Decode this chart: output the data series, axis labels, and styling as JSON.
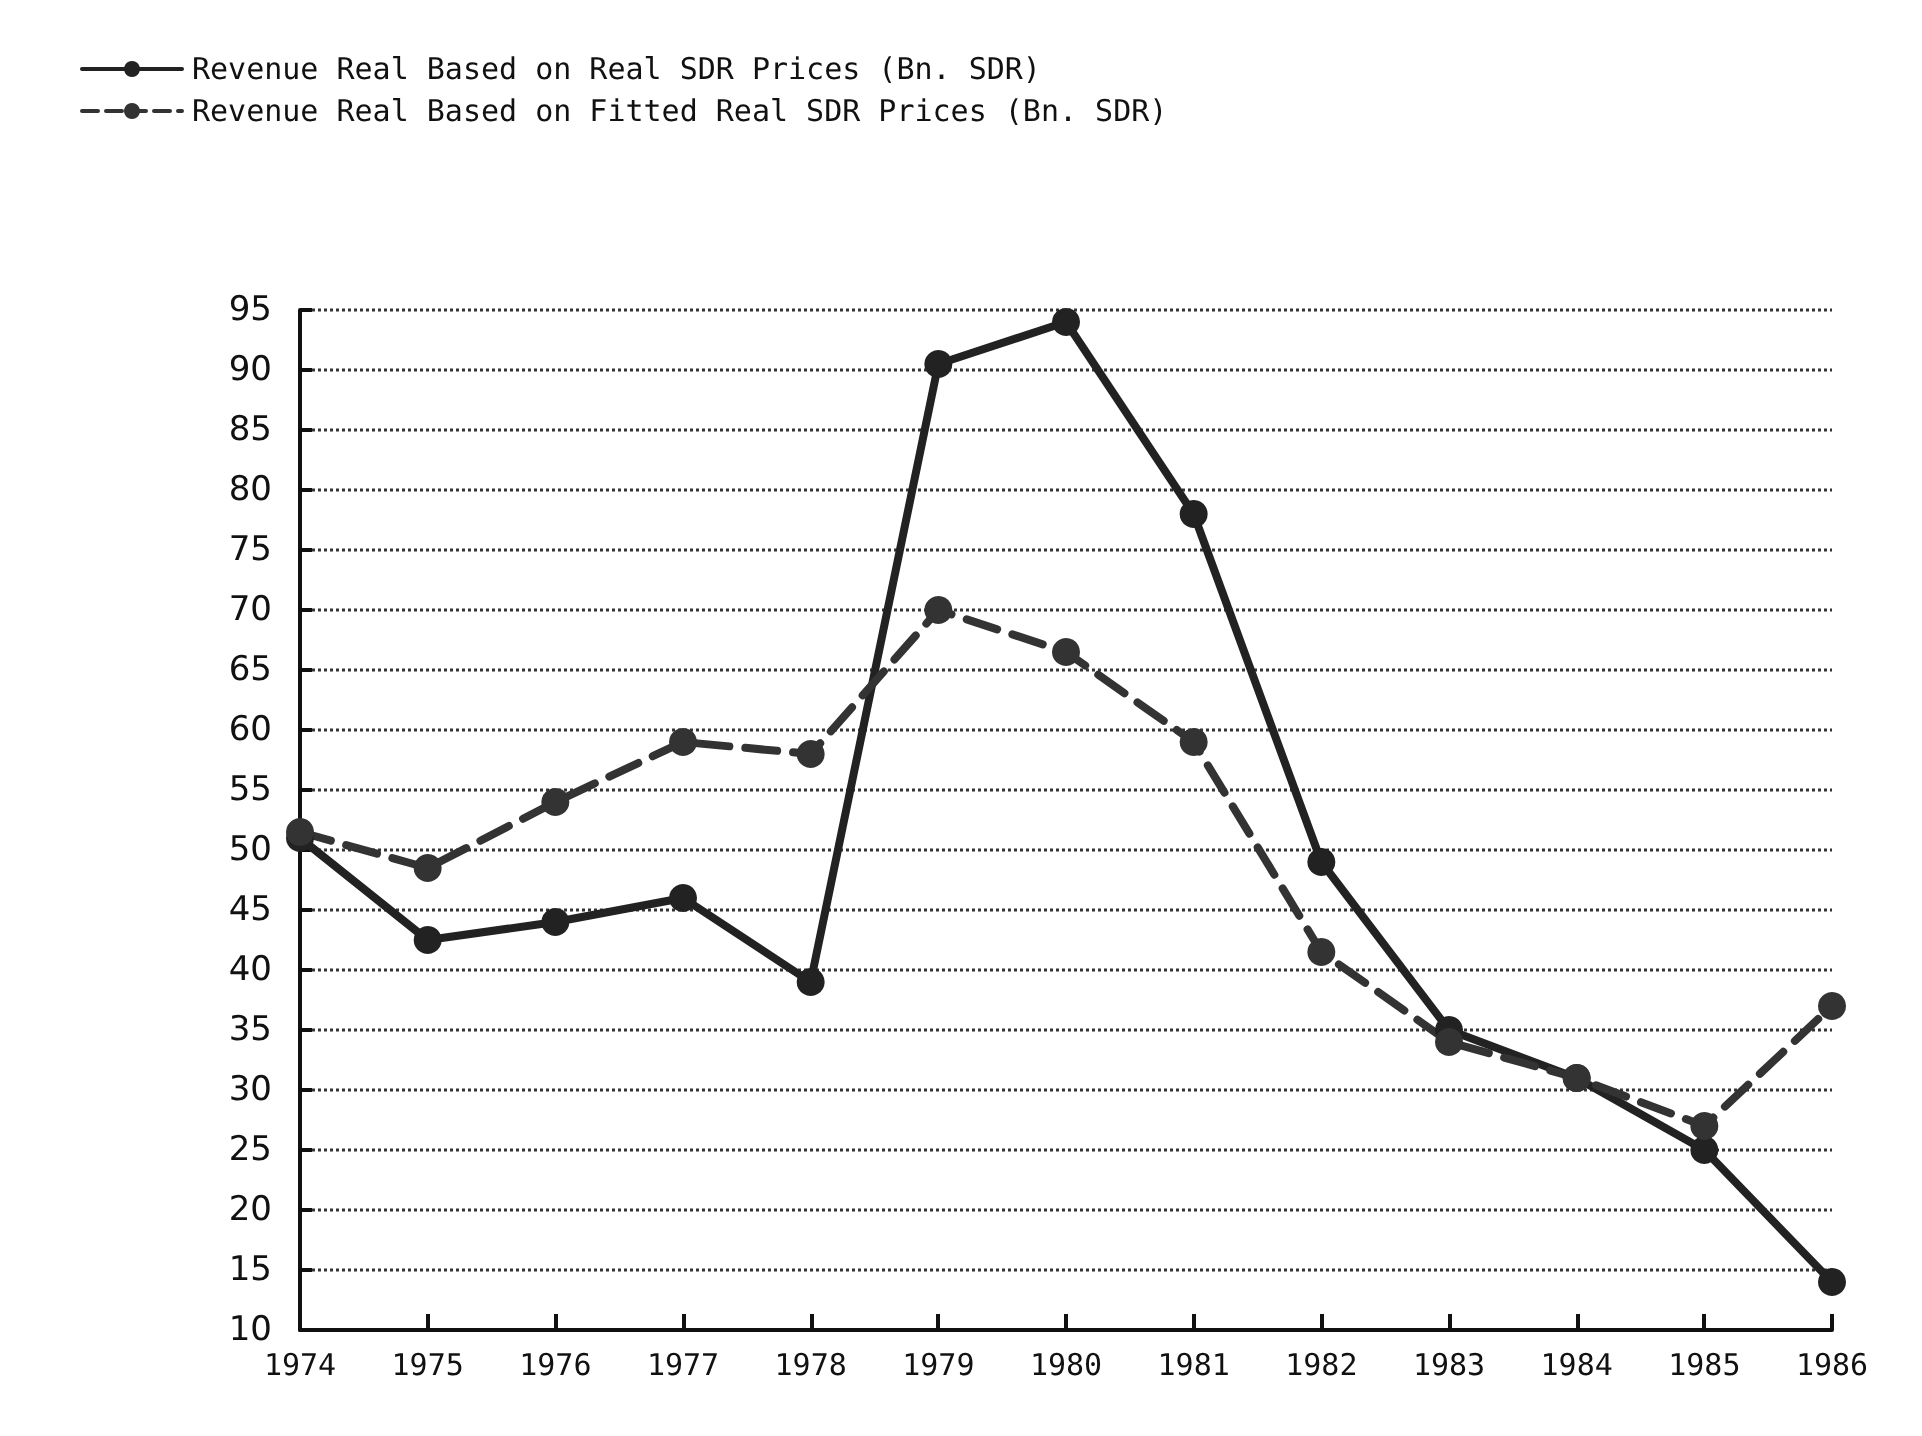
{
  "chart_data": {
    "type": "line",
    "categories": [
      "1974",
      "1975",
      "1976",
      "1977",
      "1978",
      "1979",
      "1980",
      "1981",
      "1982",
      "1983",
      "1984",
      "1985",
      "1986"
    ],
    "series": [
      {
        "name": "Revenue Real Based on Real SDR Prices (Bn. SDR)",
        "color": "#222222",
        "line_style": "solid",
        "values": [
          51,
          42.5,
          44,
          46,
          39,
          90.5,
          94,
          78,
          49,
          35,
          31,
          25,
          14
        ]
      },
      {
        "name": "Revenue Real Based on Fitted Real SDR Prices (Bn. SDR)",
        "color": "#333333",
        "line_style": "dashed",
        "values": [
          51.5,
          48.5,
          54,
          59,
          58,
          70,
          66.5,
          59,
          41.5,
          34,
          31,
          27,
          37
        ]
      }
    ],
    "ylim": [
      10,
      95
    ],
    "yticks": [
      10,
      15,
      20,
      25,
      30,
      35,
      40,
      45,
      50,
      55,
      60,
      65,
      70,
      75,
      80,
      85,
      90,
      95
    ],
    "grid": "y",
    "legend": "top left",
    "marker": "circle"
  }
}
